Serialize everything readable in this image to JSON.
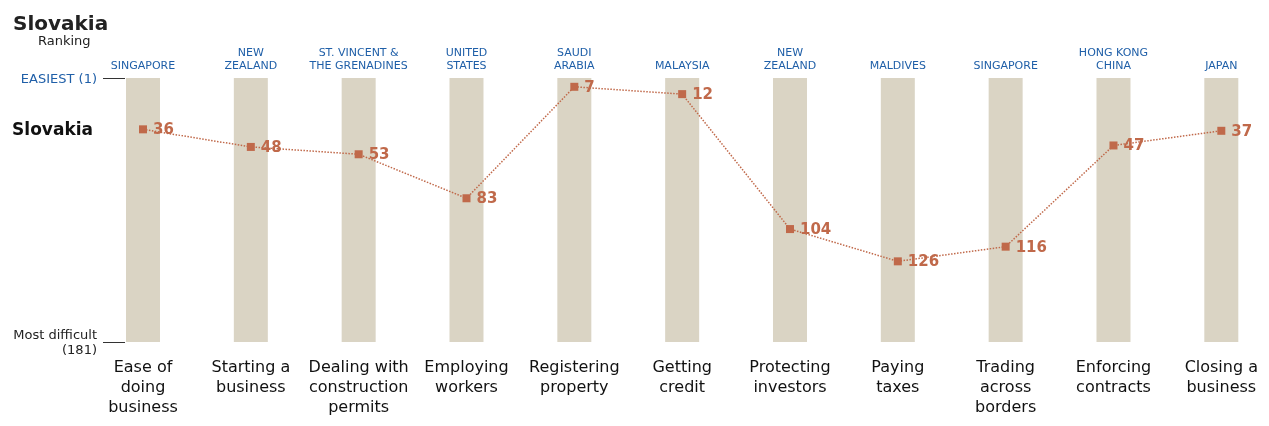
{
  "chart_data": {
    "type": "line",
    "title": "Slovakia",
    "ylabel": "Ranking",
    "categories": [
      "Ease of\ndoing\nbusiness",
      "Starting a\nbusiness",
      "Dealing with\nconstruction\npermits",
      "Employing\nworkers",
      "Registering\nproperty",
      "Getting\ncredit",
      "Protecting\ninvestors",
      "Paying\ntaxes",
      "Trading\nacross\nborders",
      "Enforcing\ncontracts",
      "Closing a\nbusiness"
    ],
    "series": [
      {
        "type": "bar",
        "color": "#dad4c4",
        "base": [
          1,
          1,
          1,
          1,
          1,
          1,
          1,
          1,
          1,
          1,
          1
        ],
        "values": [
          180,
          180,
          180,
          180,
          180,
          180,
          180,
          180,
          180,
          180,
          180
        ]
      },
      {
        "name": "Slovakia",
        "color": "#c0694a",
        "values": [
          36,
          48,
          53,
          83,
          7,
          12,
          104,
          126,
          116,
          47,
          37
        ],
        "value_labels": [
          "36",
          "48",
          "53",
          "83",
          "7",
          "12",
          "104",
          "126",
          "116",
          "47",
          "37"
        ]
      }
    ],
    "ylim": [
      181,
      1
    ],
    "yticks": [
      {
        "value": 1,
        "label": "EASIEST (1)"
      },
      {
        "value": 181,
        "label": "Most difficult\n(181)"
      }
    ],
    "annotations": [
      "SINGAPORE",
      "NEW\nZEALAND",
      "ST. VINCENT &\nTHE GRENADINES",
      "UNITED\nSTATES",
      "SAUDI\nARABIA",
      "MALAYSIA",
      "NEW\nZEALAND",
      "MALDIVES",
      "SINGAPORE",
      "HONG KONG\nCHINA",
      "JAPAN"
    ],
    "marker": "square",
    "line_style": "dotted"
  }
}
